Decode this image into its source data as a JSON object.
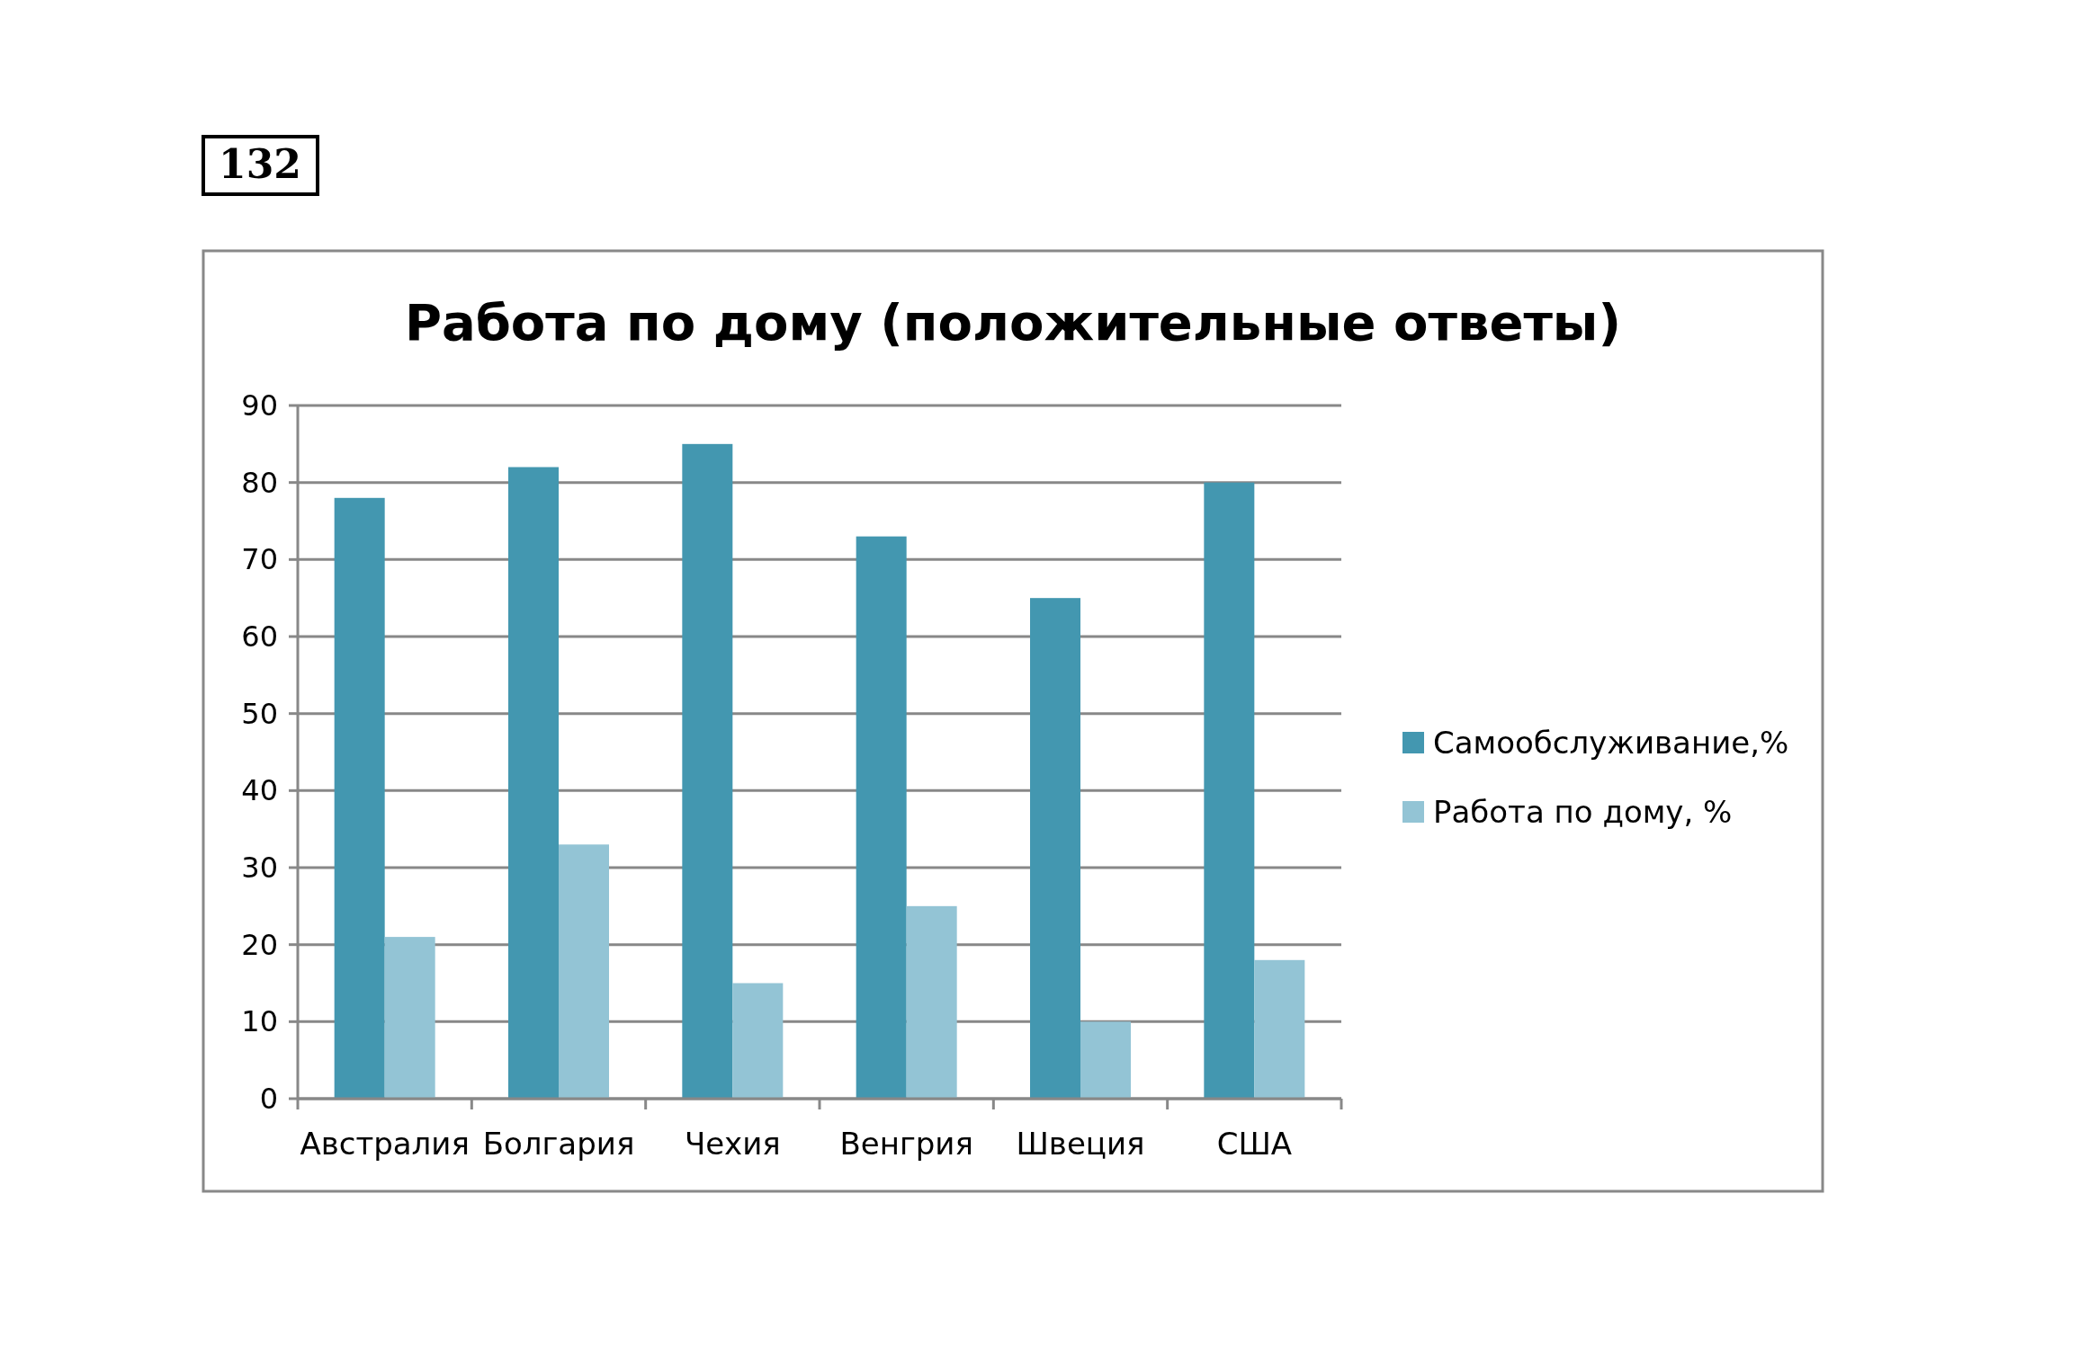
{
  "chart_data": {
    "type": "bar",
    "title": "Работа по дому (положительные ответы)",
    "annotations": [
      "132"
    ],
    "categories": [
      "Австралия",
      "Болгария",
      "Чехия",
      "Венгрия",
      "Швеция",
      "США"
    ],
    "series": [
      {
        "name": "Самообслуживание,%",
        "color": "#4397b0",
        "values": [
          78,
          82,
          85,
          73,
          65,
          80
        ]
      },
      {
        "name": "Работа по дому, %",
        "color": "#93c4d5",
        "values": [
          21,
          33,
          15,
          25,
          10,
          18
        ]
      }
    ],
    "ylim": [
      0,
      90
    ],
    "yticks": [
      0,
      10,
      20,
      30,
      40,
      50,
      60,
      70,
      80,
      90
    ],
    "grid": "y",
    "legend": "right"
  }
}
